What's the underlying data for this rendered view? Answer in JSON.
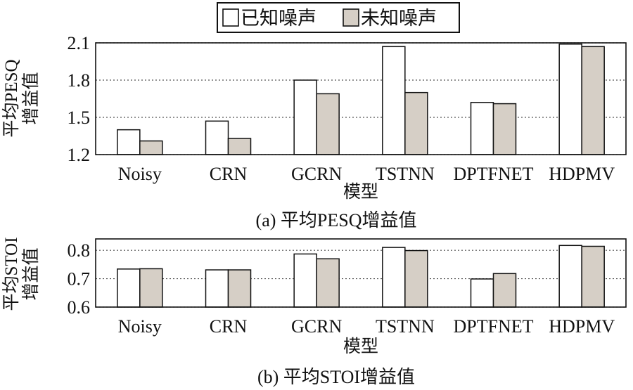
{
  "legend": {
    "known_label": "已知噪声",
    "unknown_label": "未知噪声",
    "colors": {
      "known": "#ffffff",
      "unknown": "#d6cfc6",
      "edge": "#111111"
    }
  },
  "chart_data": [
    {
      "type": "bar",
      "caption": "(a) 平均PESQ增益值",
      "xlabel": "模型",
      "ylabel_lines": [
        "平均PESQ",
        "增益值"
      ],
      "categories": [
        "Noisy",
        "CRN",
        "GCRN",
        "TSTNN",
        "DPTFNET",
        "HDPMV"
      ],
      "ylim": [
        1.2,
        2.1
      ],
      "yticks": [
        "1.2",
        "1.5",
        "1.8",
        "2.1"
      ],
      "grid": true,
      "series": [
        {
          "name": "已知噪声",
          "values": [
            1.4,
            1.47,
            1.8,
            2.07,
            1.62,
            2.09
          ]
        },
        {
          "name": "未知噪声",
          "values": [
            1.31,
            1.33,
            1.69,
            1.7,
            1.61,
            2.07
          ]
        }
      ]
    },
    {
      "type": "bar",
      "caption": "(b) 平均STOI增益值",
      "xlabel": "模型",
      "ylabel_lines": [
        "平均STOI",
        "增益值"
      ],
      "categories": [
        "Noisy",
        "CRN",
        "GCRN",
        "TSTNN",
        "DPTFNET",
        "HDPMV"
      ],
      "ylim": [
        0.6,
        0.84
      ],
      "yticks": [
        "0.6",
        "0.7",
        "0.8"
      ],
      "grid": true,
      "series": [
        {
          "name": "已知噪声",
          "values": [
            0.734,
            0.731,
            0.787,
            0.81,
            0.699,
            0.817
          ]
        },
        {
          "name": "未知噪声",
          "values": [
            0.735,
            0.731,
            0.77,
            0.799,
            0.718,
            0.814
          ]
        }
      ]
    }
  ]
}
